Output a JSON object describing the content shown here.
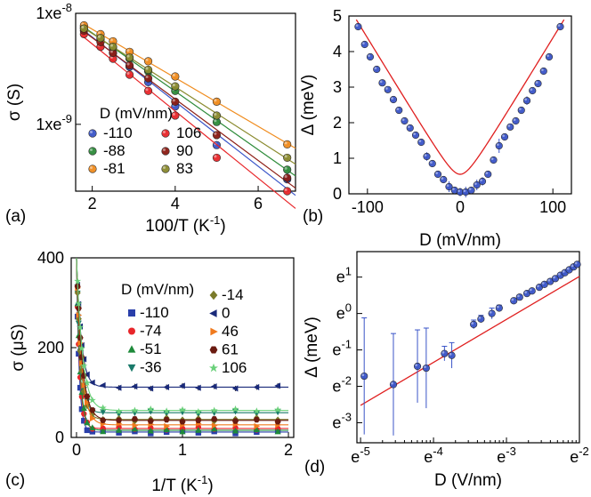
{
  "chart_data": [
    {
      "panel": "(a)",
      "type": "scatter",
      "xlabel": "100/T (K",
      "xlabel_sup": "-1",
      "ylabel": "σ (S)",
      "xlim": [
        1.6,
        6.9
      ],
      "ylim": [
        2.5e-10,
        1e-08
      ],
      "yscale": "log",
      "xticks": [
        2,
        4,
        6
      ],
      "ytick_labels": [
        {
          "v": 1e-08,
          "t": "1xe"
        },
        {
          "v": 1e-09,
          "t": "1xe"
        }
      ],
      "ytick_exp": "-8",
      "ytick_exp2": "-9",
      "legend_title": "D (mV/nm)",
      "x": [
        1.8,
        2.2,
        2.5,
        2.9,
        3.35,
        4.0,
        5.0,
        6.7
      ],
      "series": [
        {
          "name": "-110",
          "color": "#3a55c8",
          "values": [
            7.6e-09,
            5.8e-09,
            4.4e-09,
            3.3e-09,
            2.4e-09,
            1.45e-09,
            6.5e-10,
            3.2e-10
          ]
        },
        {
          "name": "-88",
          "color": "#2e8b3a",
          "values": [
            7.4e-09,
            5.9e-09,
            4.9e-09,
            3.9e-09,
            3e-09,
            2e-09,
            1.05e-09,
            3.9e-10
          ]
        },
        {
          "name": "-81",
          "color": "#f08c1e",
          "values": [
            7.8e-09,
            6.5e-09,
            5.6e-09,
            4.5e-09,
            3.7e-09,
            2.7e-09,
            1.6e-09,
            6.6e-10
          ]
        },
        {
          "name": "106",
          "color": "#e8262a",
          "values": [
            6.5e-09,
            5e-09,
            3.9e-09,
            2.8e-09,
            2e-09,
            1.2e-09,
            5e-10,
            2.5e-10
          ]
        },
        {
          "name": "90",
          "color": "#8c1c14",
          "values": [
            7e-09,
            5.5e-09,
            4.4e-09,
            3.4e-09,
            2.6e-09,
            1.6e-09,
            8e-10,
            3.3e-10
          ]
        },
        {
          "name": "83",
          "color": "#8a8a2e",
          "values": [
            7.3e-09,
            6e-09,
            5e-09,
            4e-09,
            3.1e-09,
            2.2e-09,
            1.2e-09,
            5e-10
          ]
        }
      ]
    },
    {
      "panel": "(b)",
      "type": "scatter",
      "xlabel": "D (mV/nm)",
      "ylabel": "Δ (meV)",
      "xlim": [
        -120,
        120
      ],
      "ylim": [
        0,
        5
      ],
      "xticks": [
        -100,
        0,
        100
      ],
      "yticks": [
        0,
        1,
        2,
        3,
        4,
        5
      ],
      "color": "#3a55c8",
      "fit_color": "#e02020",
      "points": [
        [
          -110,
          4.7
        ],
        [
          -103,
          4.2
        ],
        [
          -97,
          3.85
        ],
        [
          -90,
          3.5
        ],
        [
          -84,
          3.12
        ],
        [
          -78,
          2.93
        ],
        [
          -72,
          2.65
        ],
        [
          -66,
          2.35
        ],
        [
          -60,
          2.05
        ],
        [
          -54,
          1.85
        ],
        [
          -48,
          1.65
        ],
        [
          -42,
          1.45
        ],
        [
          -36,
          1.05
        ],
        [
          -30,
          0.85
        ],
        [
          -24,
          0.55
        ],
        [
          -18,
          0.4
        ],
        [
          -12,
          0.2
        ],
        [
          -6,
          0.1
        ],
        [
          0,
          0.05
        ],
        [
          6,
          0.05
        ],
        [
          12,
          0.1
        ],
        [
          18,
          0.25
        ],
        [
          24,
          0.35
        ],
        [
          30,
          0.55
        ],
        [
          36,
          0.95
        ],
        [
          42,
          1.35
        ],
        [
          48,
          1.6
        ],
        [
          54,
          1.88
        ],
        [
          60,
          2.05
        ],
        [
          66,
          2.35
        ],
        [
          72,
          2.62
        ],
        [
          78,
          2.9
        ],
        [
          84,
          3.1
        ],
        [
          90,
          3.45
        ],
        [
          96,
          3.85
        ],
        [
          108,
          4.7
        ]
      ],
      "error_bars": [
        [
          -36,
          1.05,
          0.12
        ],
        [
          -12,
          0.2,
          0.15
        ],
        [
          0,
          0.05,
          0.12
        ],
        [
          6,
          0.05,
          0.15
        ],
        [
          18,
          0.25,
          0.15
        ],
        [
          24,
          0.35,
          0.12
        ],
        [
          42,
          1.35,
          0.2
        ],
        [
          72,
          2.62,
          0.12
        ]
      ]
    },
    {
      "panel": "(c)",
      "type": "line",
      "xlabel": "1/T (K",
      "xlabel_sup": "-1",
      "ylabel": "σ (μS)",
      "xlim": [
        -0.05,
        2.05
      ],
      "ylim": [
        0,
        400
      ],
      "xticks": [
        0,
        1,
        2
      ],
      "yticks": [
        0,
        200,
        400
      ],
      "legend_title": "D (mV/nm)",
      "series": [
        {
          "name": "-110",
          "marker": "square",
          "color": "#2a3faa",
          "plateau": 12
        },
        {
          "name": "-74",
          "marker": "circle",
          "color": "#e8262a",
          "plateau": 20
        },
        {
          "name": "-51",
          "marker": "triangle-up",
          "color": "#1e8a3a",
          "plateau": 16
        },
        {
          "name": "-36",
          "marker": "triangle-down",
          "color": "#1a7a6a",
          "plateau": 55
        },
        {
          "name": "-14",
          "marker": "diamond",
          "color": "#7a7a2a",
          "plateau": 40
        },
        {
          "name": "0",
          "marker": "triangle-left",
          "color": "#1a2a7a",
          "plateau": 112
        },
        {
          "name": "46",
          "marker": "triangle-right",
          "color": "#f07a1e",
          "plateau": 28
        },
        {
          "name": "61",
          "marker": "hexagon",
          "color": "#6a1a10",
          "plateau": 38
        },
        {
          "name": "106",
          "marker": "star",
          "color": "#6ad07a",
          "plateau": 60
        }
      ]
    },
    {
      "panel": "(d)",
      "type": "scatter",
      "xlabel": "D (V/nm)",
      "ylabel": "Δ (meV)",
      "xscale": "log",
      "yscale": "log",
      "xlim": [
        -5.05,
        -2.0
      ],
      "ylim": [
        -3.55,
        1.7
      ],
      "xtick_labels": [
        {
          "v": -5,
          "t": "e",
          "sup": "-5"
        },
        {
          "v": -4,
          "t": "e",
          "sup": "-4"
        },
        {
          "v": -3,
          "t": "e",
          "sup": "-3"
        },
        {
          "v": -2,
          "t": "e",
          "sup": "-2"
        }
      ],
      "ytick_labels": [
        {
          "v": 1,
          "t": "e",
          "sup": "1"
        },
        {
          "v": 0,
          "t": "e",
          "sup": "0"
        },
        {
          "v": -1,
          "t": "e",
          "sup": "-1"
        },
        {
          "v": -2,
          "t": "e",
          "sup": "-2"
        },
        {
          "v": -3,
          "t": "e",
          "sup": "-3"
        }
      ],
      "color": "#3a55c8",
      "fit_color": "#e02020",
      "points": [
        [
          -4.95,
          -1.72,
          1.6
        ],
        [
          -4.55,
          -1.95,
          1.4
        ],
        [
          -4.22,
          -1.45,
          1.0
        ],
        [
          -4.1,
          -1.5,
          1.1
        ],
        [
          -3.85,
          -1.1,
          0.2
        ],
        [
          -3.75,
          -1.15,
          0.35
        ],
        [
          -3.45,
          -0.3,
          0.12
        ],
        [
          -3.35,
          -0.15,
          0.1
        ],
        [
          -3.2,
          0.0,
          0.15
        ],
        [
          -3.1,
          0.15,
          0.08
        ],
        [
          -2.9,
          0.35,
          0.05
        ],
        [
          -2.82,
          0.45,
          0.05
        ],
        [
          -2.72,
          0.55,
          0.05
        ],
        [
          -2.65,
          0.62,
          0.04
        ],
        [
          -2.55,
          0.72,
          0.04
        ],
        [
          -2.48,
          0.8,
          0.04
        ],
        [
          -2.4,
          0.88,
          0.04
        ],
        [
          -2.33,
          0.96,
          0.04
        ],
        [
          -2.26,
          1.05,
          0.04
        ],
        [
          -2.2,
          1.12,
          0.04
        ],
        [
          -2.14,
          1.2,
          0.04
        ],
        [
          -2.08,
          1.28,
          0.04
        ],
        [
          -2.03,
          1.35,
          0.04
        ]
      ]
    }
  ]
}
